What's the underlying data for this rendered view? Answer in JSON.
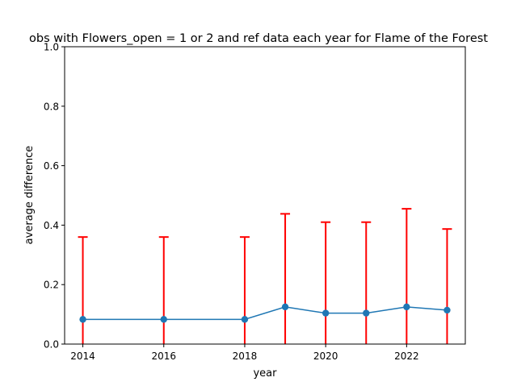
{
  "chart_data": {
    "type": "line",
    "title": "obs with Flowers_open = 1 or 2 and ref data each year for Flame of the Forest",
    "xlabel": "year",
    "ylabel": "average difference",
    "xlim": [
      2013.55,
      2023.45
    ],
    "ylim": [
      0.0,
      1.0
    ],
    "x_ticks": [
      2014,
      2016,
      2018,
      2020,
      2022
    ],
    "y_ticks": [
      "0.0",
      "0.2",
      "0.4",
      "0.6",
      "0.8",
      "1.0"
    ],
    "grid": false,
    "legend": "none",
    "series": [
      {
        "x": [
          2014,
          2016,
          2018,
          2019,
          2020,
          2021,
          2022,
          2023
        ],
        "y": [
          0.083,
          0.083,
          0.083,
          0.125,
          0.104,
          0.104,
          0.125,
          0.114
        ],
        "error_low": [
          0.083,
          0.083,
          0.083,
          0.125,
          0.104,
          0.104,
          0.125,
          0.114
        ],
        "error_high": [
          0.277,
          0.277,
          0.277,
          0.313,
          0.306,
          0.306,
          0.33,
          0.273
        ],
        "color": "#1f77b4",
        "error_color": "#ff0000"
      }
    ]
  }
}
